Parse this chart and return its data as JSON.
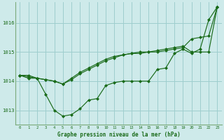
{
  "title": "Graphe pression niveau de la mer (hPa)",
  "bg_color": "#ceeaea",
  "plot_bg_color": "#ceeaea",
  "grid_color": "#9ecece",
  "line_color": "#1a6b1a",
  "marker_color": "#1a6b1a",
  "border_color": "#7aaa7a",
  "xlim": [
    -0.5,
    23.5
  ],
  "ylim": [
    1012.5,
    1016.7
  ],
  "yticks": [
    1013,
    1014,
    1015,
    1016
  ],
  "xticks": [
    0,
    1,
    2,
    3,
    4,
    5,
    6,
    7,
    8,
    9,
    10,
    11,
    12,
    13,
    14,
    15,
    16,
    17,
    18,
    19,
    20,
    21,
    22,
    23
  ],
  "series1": [
    1014.2,
    1014.2,
    1014.1,
    1013.55,
    1013.0,
    1012.8,
    1012.85,
    1013.05,
    1013.35,
    1013.4,
    1013.85,
    1013.95,
    1014.0,
    1014.0,
    1014.0,
    1014.0,
    1014.4,
    1014.45,
    1014.95,
    1015.1,
    1014.95,
    1015.1,
    1016.1,
    1016.55
  ],
  "series2": [
    1014.2,
    1014.15,
    1014.1,
    1014.05,
    1014.0,
    1013.9,
    1014.05,
    1014.25,
    1014.4,
    1014.55,
    1014.7,
    1014.8,
    1014.9,
    1014.95,
    1014.95,
    1015.0,
    1015.0,
    1015.05,
    1015.1,
    1015.15,
    1015.45,
    1015.5,
    1015.55,
    1016.55
  ],
  "series3": [
    1014.2,
    1014.1,
    1014.1,
    1014.05,
    1014.0,
    1013.9,
    1014.1,
    1014.3,
    1014.45,
    1014.6,
    1014.75,
    1014.85,
    1014.9,
    1014.95,
    1015.0,
    1015.0,
    1015.05,
    1015.1,
    1015.15,
    1015.2,
    1015.0,
    1015.0,
    1015.0,
    1016.55
  ]
}
